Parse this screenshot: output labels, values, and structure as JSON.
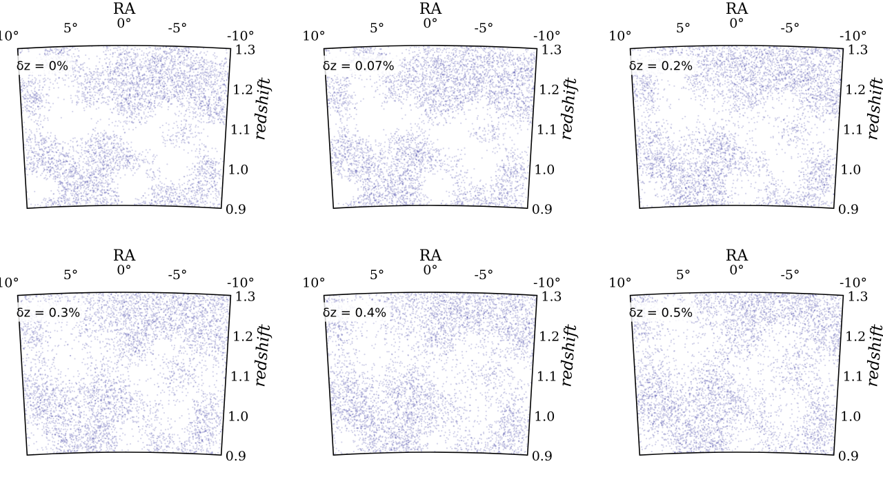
{
  "figure": {
    "colors": {
      "points": "#3f3fa6",
      "outline": "#000000",
      "label_bg": "#ffffff"
    }
  },
  "chart_data": [
    {
      "type": "scatter",
      "projection": "polar-wedge",
      "panel_label": "δz = 0%",
      "xlabel": "RA",
      "ylabel": "redshift",
      "xticks": [
        "10°",
        "5°",
        "0°",
        "-5°",
        "-10°"
      ],
      "xtick_values": [
        10,
        5,
        0,
        -5,
        -10
      ],
      "yticks": [
        "0.9",
        "1.0",
        "1.1",
        "1.2",
        "1.3"
      ],
      "ytick_values": [
        0.9,
        1.0,
        1.1,
        1.2,
        1.3
      ],
      "xlim": [
        -10,
        10
      ],
      "ylim": [
        0.9,
        1.3
      ],
      "density_structure": "strong"
    },
    {
      "type": "scatter",
      "projection": "polar-wedge",
      "panel_label": "δz = 0.07%",
      "xlabel": "RA",
      "ylabel": "redshift",
      "xticks": [
        "10°",
        "5°",
        "0°",
        "-5°",
        "-10°"
      ],
      "xtick_values": [
        10,
        5,
        0,
        -5,
        -10
      ],
      "yticks": [
        "0.9",
        "1.0",
        "1.1",
        "1.2",
        "1.3"
      ],
      "ytick_values": [
        0.9,
        1.0,
        1.1,
        1.2,
        1.3
      ],
      "xlim": [
        -10,
        10
      ],
      "ylim": [
        0.9,
        1.3
      ],
      "density_structure": "strong"
    },
    {
      "type": "scatter",
      "projection": "polar-wedge",
      "panel_label": "δz = 0.2%",
      "xlabel": "RA",
      "ylabel": "redshift",
      "xticks": [
        "10°",
        "5°",
        "0°",
        "-5°",
        "-10°"
      ],
      "xtick_values": [
        10,
        5,
        0,
        -5,
        -10
      ],
      "yticks": [
        "0.9",
        "1.0",
        "1.1",
        "1.2",
        "1.3"
      ],
      "ytick_values": [
        0.9,
        1.0,
        1.1,
        1.2,
        1.3
      ],
      "xlim": [
        -10,
        10
      ],
      "ylim": [
        0.9,
        1.3
      ],
      "density_structure": "medium"
    },
    {
      "type": "scatter",
      "projection": "polar-wedge",
      "panel_label": "δz = 0.3%",
      "xlabel": "RA",
      "ylabel": "redshift",
      "xticks": [
        "10°",
        "5°",
        "0°",
        "-5°",
        "-10°"
      ],
      "xtick_values": [
        10,
        5,
        0,
        -5,
        -10
      ],
      "yticks": [
        "0.9",
        "1.0",
        "1.1",
        "1.2",
        "1.3"
      ],
      "ytick_values": [
        0.9,
        1.0,
        1.1,
        1.2,
        1.3
      ],
      "xlim": [
        -10,
        10
      ],
      "ylim": [
        0.9,
        1.3
      ],
      "density_structure": "weak"
    },
    {
      "type": "scatter",
      "projection": "polar-wedge",
      "panel_label": "δz = 0.4%",
      "xlabel": "RA",
      "ylabel": "redshift",
      "xticks": [
        "10°",
        "5°",
        "0°",
        "-5°",
        "-10°"
      ],
      "xtick_values": [
        10,
        5,
        0,
        -5,
        -10
      ],
      "yticks": [
        "0.9",
        "1.0",
        "1.1",
        "1.2",
        "1.3"
      ],
      "ytick_values": [
        0.9,
        1.0,
        1.1,
        1.2,
        1.3
      ],
      "xlim": [
        -10,
        10
      ],
      "ylim": [
        0.9,
        1.3
      ],
      "density_structure": "weak"
    },
    {
      "type": "scatter",
      "projection": "polar-wedge",
      "panel_label": "δz = 0.5%",
      "xlabel": "RA",
      "ylabel": "redshift",
      "xticks": [
        "10°",
        "5°",
        "0°",
        "-5°",
        "-10°"
      ],
      "xtick_values": [
        10,
        5,
        0,
        -5,
        -10
      ],
      "yticks": [
        "0.9",
        "1.0",
        "1.1",
        "1.2",
        "1.3"
      ],
      "ytick_values": [
        0.9,
        1.0,
        1.1,
        1.2,
        1.3
      ],
      "xlim": [
        -10,
        10
      ],
      "ylim": [
        0.9,
        1.3
      ],
      "density_structure": "weak"
    }
  ]
}
